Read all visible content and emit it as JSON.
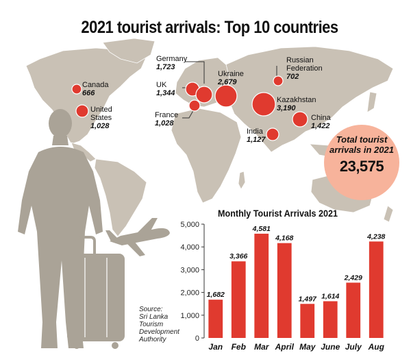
{
  "title": "2021 tourist arrivals: Top 10 countries",
  "countries": [
    {
      "name": "Canada",
      "value": "666"
    },
    {
      "name": "United States",
      "value": "1,028"
    },
    {
      "name": "UK",
      "value": "1,344"
    },
    {
      "name": "Germany",
      "value": "1,723"
    },
    {
      "name": "France",
      "value": "1,028"
    },
    {
      "name": "Ukraine",
      "value": "2,679"
    },
    {
      "name": "Russian Federation",
      "value": "702"
    },
    {
      "name": "Kazakhstan",
      "value": "3,190"
    },
    {
      "name": "India",
      "value": "1,127"
    },
    {
      "name": "China",
      "value": "1,422"
    }
  ],
  "total": {
    "label": "Total tourist arrivals in 2021",
    "value": "23,575"
  },
  "source": {
    "lines": [
      "Source:",
      "Sri Lanka",
      "Tourism",
      "Development",
      "Authority"
    ]
  },
  "colors": {
    "accent": "#e03a2f",
    "map": "#c9c1b5",
    "silhouette": "#aaa397",
    "total_bg": "#f7b39b"
  },
  "icons": [
    "world-map",
    "traveller-silhouette",
    "suitcase",
    "airplane"
  ],
  "chart_data": {
    "type": "bar",
    "title": "Monthly Tourist Arrivals 2021",
    "categories": [
      "Jan",
      "Feb",
      "Mar",
      "April",
      "May",
      "June",
      "July",
      "Aug"
    ],
    "values": [
      1682,
      3366,
      4581,
      4168,
      1497,
      1614,
      2429,
      4238
    ],
    "value_labels": [
      "1,682",
      "3,366",
      "4,581",
      "4,168",
      "1,497",
      "1,614",
      "2,429",
      "4,238"
    ],
    "yticks": [
      "0",
      "1,000",
      "2,000",
      "3,000",
      "4,000",
      "5,000"
    ],
    "ylim": [
      0,
      5000
    ],
    "xlabel": "",
    "ylabel": "",
    "grid": false,
    "bar_color": "#e03a2f"
  }
}
